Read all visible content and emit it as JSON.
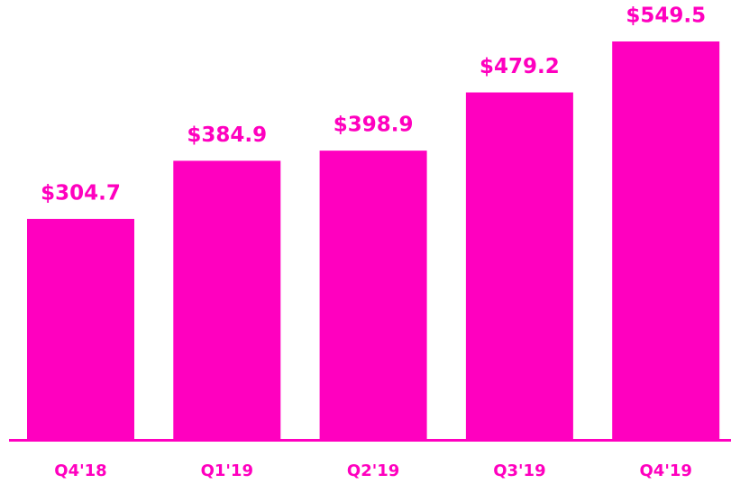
{
  "chart_data": {
    "type": "bar",
    "categories": [
      "Q4'18",
      "Q1'19",
      "Q2'19",
      "Q3'19",
      "Q4'19"
    ],
    "values": [
      304.7,
      384.9,
      398.9,
      479.2,
      549.5
    ],
    "value_labels": [
      "$304.7",
      "$384.9",
      "$398.9",
      "$479.2",
      "$549.5"
    ],
    "color": "#ff00bf"
  }
}
